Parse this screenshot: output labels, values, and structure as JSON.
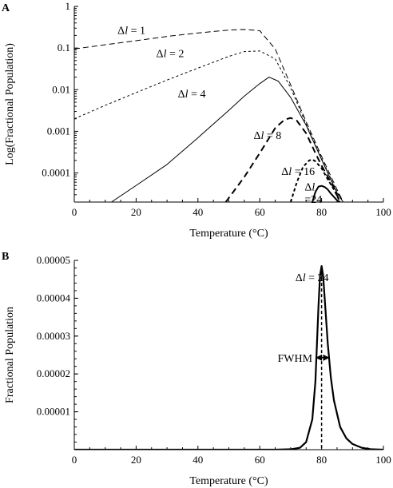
{
  "chart_data": [
    {
      "panel": "A",
      "type": "line",
      "ylog": true,
      "xlabel": "Temperature (°C)",
      "ylabel": "Log(Fractional Population)",
      "xlim": [
        0,
        100
      ],
      "ylim": [
        2e-05,
        1
      ],
      "xticks": [
        0,
        20,
        40,
        60,
        80,
        100
      ],
      "yticks": [
        {
          "value": 1,
          "label": "1"
        },
        {
          "value": 0.1,
          "label": "0.1"
        },
        {
          "value": 0.01,
          "label": "0.01"
        },
        {
          "value": 0.001,
          "label": "0.001"
        },
        {
          "value": 0.0001,
          "label": "0.0001"
        }
      ],
      "series": [
        {
          "name": "Δl = 1",
          "dash": "7,4",
          "width": 1,
          "x": [
            0,
            10,
            20,
            30,
            40,
            50,
            55,
            60,
            65,
            70,
            75,
            80,
            85,
            87
          ],
          "y": [
            0.095,
            0.12,
            0.15,
            0.19,
            0.23,
            0.27,
            0.28,
            0.26,
            0.095,
            0.013,
            0.0017,
            0.00025,
            4e-05,
            2e-05
          ]
        },
        {
          "name": "Δl = 2",
          "dash": "3,3",
          "width": 1,
          "x": [
            0,
            10,
            20,
            30,
            40,
            50,
            55,
            60,
            65,
            70,
            75,
            80,
            85,
            87
          ],
          "y": [
            0.002,
            0.0042,
            0.0085,
            0.017,
            0.033,
            0.063,
            0.082,
            0.085,
            0.055,
            0.011,
            0.0015,
            0.00022,
            3.5e-05,
            2e-05
          ]
        },
        {
          "name": "Δl = 4",
          "dash": "",
          "width": 1,
          "x": [
            12,
            20,
            30,
            40,
            50,
            55,
            60,
            63,
            66,
            70,
            75,
            80,
            85,
            87
          ],
          "y": [
            2e-05,
            5e-05,
            0.00016,
            0.0007,
            0.0032,
            0.007,
            0.014,
            0.02,
            0.016,
            0.0065,
            0.0014,
            0.00021,
            3.3e-05,
            2e-05
          ]
        },
        {
          "name": "Δl = 8",
          "dash": "8,5",
          "width": 2,
          "x": [
            49,
            55,
            60,
            65,
            68,
            70,
            72,
            75,
            78,
            80,
            83,
            86
          ],
          "y": [
            2e-05,
            8e-05,
            0.0003,
            0.0012,
            0.0019,
            0.0021,
            0.0018,
            0.0009,
            0.0003,
            0.00015,
            6e-05,
            2e-05
          ]
        },
        {
          "name": "Δl = 16",
          "dash": "4,3",
          "width": 2,
          "x": [
            70,
            72,
            74,
            76,
            77,
            78,
            80,
            82,
            84,
            86
          ],
          "y": [
            2e-05,
            6e-05,
            0.00014,
            0.0002,
            0.00021,
            0.00019,
            0.00013,
            7e-05,
            4e-05,
            2e-05
          ]
        },
        {
          "name": "Δl = 24",
          "dash": "",
          "width": 2,
          "x": [
            77,
            78,
            79,
            80,
            81,
            82,
            83,
            85,
            86
          ],
          "y": [
            2e-05,
            3.5e-05,
            4.7e-05,
            4.9e-05,
            4.6e-05,
            4e-05,
            3.2e-05,
            2.2e-05,
            2e-05
          ]
        }
      ],
      "labels": [
        {
          "var": "Δ",
          "ital": "l",
          "rest": " = 1",
          "x": 14,
          "y": 0.22
        },
        {
          "var": "Δ",
          "ital": "l",
          "rest": " = 2",
          "x": 26.5,
          "y": 0.06
        },
        {
          "var": "Δ",
          "ital": "l",
          "rest": " = 4",
          "x": 33.5,
          "y": 0.0065
        },
        {
          "var": "Δ",
          "ital": "l",
          "rest": " = 8",
          "x": 58,
          "y": 0.00065
        },
        {
          "var": "Δ",
          "ital": "l",
          "rest": " = 16",
          "x": 67,
          "y": 9e-05
        },
        {
          "var": "Δ",
          "ital": "l",
          "rest": "",
          "x": 74.5,
          "y": 3.8e-05
        },
        {
          "var": "",
          "ital": "",
          "rest": "=24",
          "x": 74.5,
          "y": 1.9e-05
        }
      ]
    },
    {
      "panel": "B",
      "type": "line",
      "ylog": false,
      "xlabel": "Temperature (°C)",
      "ylabel": "Fractional Population",
      "xlim": [
        0,
        100
      ],
      "ylim": [
        0,
        5e-05
      ],
      "xticks": [
        0,
        20,
        40,
        60,
        80,
        100
      ],
      "yticks": [
        {
          "value": 1e-05,
          "label": "0.00001"
        },
        {
          "value": 2e-05,
          "label": "0.00002"
        },
        {
          "value": 3e-05,
          "label": "0.00003"
        },
        {
          "value": 4e-05,
          "label": "0.00004"
        },
        {
          "value": 5e-05,
          "label": "0.00005"
        }
      ],
      "series": [
        {
          "name": "Δl = 24",
          "dash": "",
          "width": 2.2,
          "x": [
            0,
            65,
            70,
            73,
            75,
            77,
            78,
            79,
            79.5,
            80,
            80.5,
            81,
            82,
            83,
            84,
            86,
            88,
            90,
            93,
            96,
            100
          ],
          "y": [
            0,
            0,
            1e-07,
            5e-07,
            2e-06,
            8e-06,
            1.8e-05,
            3.8e-05,
            4.6e-05,
            4.85e-05,
            4.6e-05,
            4e-05,
            2.8e-05,
            1.9e-05,
            1.3e-05,
            6e-06,
            3e-06,
            1.5e-06,
            5e-07,
            1e-07,
            0
          ]
        }
      ],
      "peak_line": {
        "x": 80,
        "y_top": 4.85e-05
      },
      "fwhm": {
        "label": "FWHM",
        "x_from": 78.3,
        "x_to": 82.3,
        "y": 2.43e-05
      },
      "labels": [
        {
          "var": "Δ",
          "ital": "l",
          "rest": " = 24",
          "x": 71.5,
          "y": 4.45e-05
        }
      ]
    }
  ],
  "panel_letters": {
    "a": "A",
    "b": "B"
  }
}
